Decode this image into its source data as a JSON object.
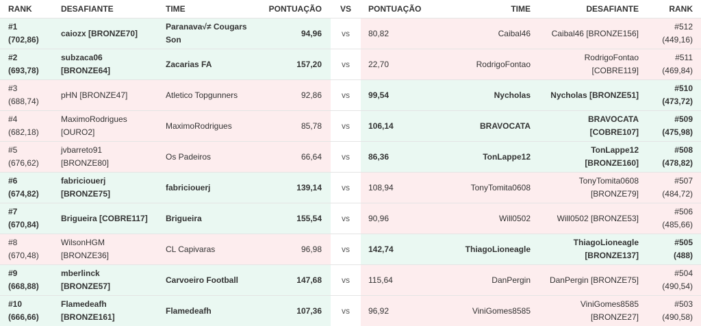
{
  "header": {
    "rank": "RANK",
    "challenger": "DESAFIANTE",
    "team": "TIME",
    "score": "PONTUAÇÃO",
    "vs": "VS",
    "score2": "PONTUAÇÃO",
    "team2": "TIME",
    "challenger2": "DESAFIANTE",
    "rank2": "RANK"
  },
  "colors": {
    "winner_bg": "#eaf8f2",
    "loser_bg": "#fdedee"
  },
  "matchups": [
    {
      "winner": "left",
      "vs": "vs",
      "left": {
        "rank": "#1",
        "rank_score": "(702,86)",
        "challenger": "caiozx [BRONZE70]",
        "team": "Paranava√≠ Cougars Son",
        "score": "94,96"
      },
      "right": {
        "score": "80,82",
        "team": "Caibal46",
        "challenger": "Caibal46 [BRONZE156]",
        "rank": "#512",
        "rank_score": "(449,16)"
      }
    },
    {
      "winner": "left",
      "vs": "vs",
      "left": {
        "rank": "#2",
        "rank_score": "(693,78)",
        "challenger": "subzaca06 [BRONZE64]",
        "team": "Zacarias FA",
        "score": "157,20"
      },
      "right": {
        "score": "22,70",
        "team": "RodrigoFontao",
        "challenger": "RodrigoFontao [COBRE119]",
        "rank": "#511",
        "rank_score": "(469,84)"
      }
    },
    {
      "winner": "right",
      "vs": "vs",
      "left": {
        "rank": "#3",
        "rank_score": "(688,74)",
        "challenger": "pHN [BRONZE47]",
        "team": "Atletico Topgunners",
        "score": "92,86"
      },
      "right": {
        "score": "99,54",
        "team": "Nycholas",
        "challenger": "Nycholas [BRONZE51]",
        "rank": "#510",
        "rank_score": "(473,72)"
      }
    },
    {
      "winner": "right",
      "vs": "vs",
      "left": {
        "rank": "#4",
        "rank_score": "(682,18)",
        "challenger": "MaximoRodrigues [OURO2]",
        "team": "MaximoRodrigues",
        "score": "85,78"
      },
      "right": {
        "score": "106,14",
        "team": "BRAVOCATA",
        "challenger": "BRAVOCATA [COBRE107]",
        "rank": "#509",
        "rank_score": "(475,98)"
      }
    },
    {
      "winner": "right",
      "vs": "vs",
      "left": {
        "rank": "#5",
        "rank_score": "(676,62)",
        "challenger": "jvbarreto91 [BRONZE80]",
        "team": "Os Padeiros",
        "score": "66,64"
      },
      "right": {
        "score": "86,36",
        "team": "TonLappe12",
        "challenger": "TonLappe12 [BRONZE160]",
        "rank": "#508",
        "rank_score": "(478,82)"
      }
    },
    {
      "winner": "left",
      "vs": "vs",
      "left": {
        "rank": "#6",
        "rank_score": "(674,82)",
        "challenger": "fabriciouerj [BRONZE75]",
        "team": "fabriciouerj",
        "score": "139,14"
      },
      "right": {
        "score": "108,94",
        "team": "TonyTomita0608",
        "challenger": "TonyTomita0608 [BRONZE79]",
        "rank": "#507",
        "rank_score": "(484,72)"
      }
    },
    {
      "winner": "left",
      "vs": "vs",
      "left": {
        "rank": "#7",
        "rank_score": "(670,84)",
        "challenger": "Brigueira [COBRE117]",
        "team": "Brigueira",
        "score": "155,54"
      },
      "right": {
        "score": "90,96",
        "team": "Will0502",
        "challenger": "Will0502 [BRONZE53]",
        "rank": "#506",
        "rank_score": "(485,66)"
      }
    },
    {
      "winner": "right",
      "vs": "vs",
      "left": {
        "rank": "#8",
        "rank_score": "(670,48)",
        "challenger": "WilsonHGM [BRONZE36]",
        "team": "CL Capivaras",
        "score": "96,98"
      },
      "right": {
        "score": "142,74",
        "team": "ThiagoLioneagle",
        "challenger": "ThiagoLioneagle [BRONZE137]",
        "rank": "#505",
        "rank_score": "(488)"
      }
    },
    {
      "winner": "left",
      "vs": "vs",
      "left": {
        "rank": "#9",
        "rank_score": "(668,88)",
        "challenger": "mberlinck [BRONZE57]",
        "team": "Carvoeiro Football",
        "score": "147,68"
      },
      "right": {
        "score": "115,64",
        "team": "DanPergin",
        "challenger": "DanPergin [BRONZE75]",
        "rank": "#504",
        "rank_score": "(490,54)"
      }
    },
    {
      "winner": "left",
      "vs": "vs",
      "left": {
        "rank": "#10",
        "rank_score": "(666,66)",
        "challenger": "Flamedeafh [BRONZE161]",
        "team": "Flamedeafh",
        "score": "107,36"
      },
      "right": {
        "score": "96,92",
        "team": "ViniGomes8585",
        "challenger": "ViniGomes8585 [BRONZE27]",
        "rank": "#503",
        "rank_score": "(490,58)"
      }
    }
  ]
}
